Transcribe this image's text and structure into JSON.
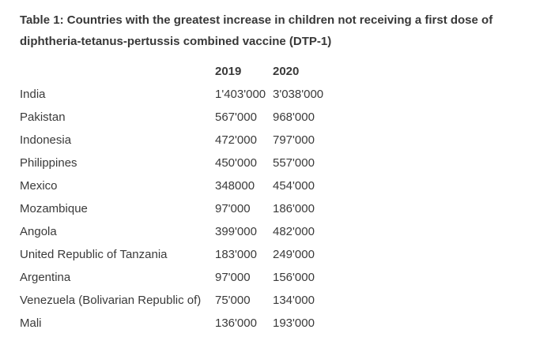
{
  "colors": {
    "text": "#3a3a3a",
    "background": "#ffffff"
  },
  "table": {
    "title": "Table 1: Countries with the greatest increase in children not receiving a first dose of diphtheria-tetanus-pertussis combined vaccine (DTP-1)",
    "columns": {
      "country": "",
      "y2019": "2019",
      "y2020": "2020"
    },
    "rows": [
      {
        "country": "India",
        "y2019": "1'403'000",
        "y2020": "3'038'000"
      },
      {
        "country": "Pakistan",
        "y2019": "567'000",
        "y2020": "968'000"
      },
      {
        "country": "Indonesia",
        "y2019": "472'000",
        "y2020": "797'000"
      },
      {
        "country": "Philippines",
        "y2019": "450'000",
        "y2020": "557'000"
      },
      {
        "country": "Mexico",
        "y2019": "348000",
        "y2020": "454'000"
      },
      {
        "country": "Mozambique",
        "y2019": "97'000",
        "y2020": "186'000"
      },
      {
        "country": "Angola",
        "y2019": "399'000",
        "y2020": "482'000"
      },
      {
        "country": "United Republic of Tanzania",
        "y2019": "183'000",
        "y2020": "249'000"
      },
      {
        "country": "Argentina",
        "y2019": "97'000",
        "y2020": "156'000"
      },
      {
        "country": "Venezuela (Bolivarian Republic of)",
        "y2019": "75'000",
        "y2020": "134'000"
      },
      {
        "country": "Mali",
        "y2019": "136'000",
        "y2020": "193'000"
      }
    ]
  }
}
